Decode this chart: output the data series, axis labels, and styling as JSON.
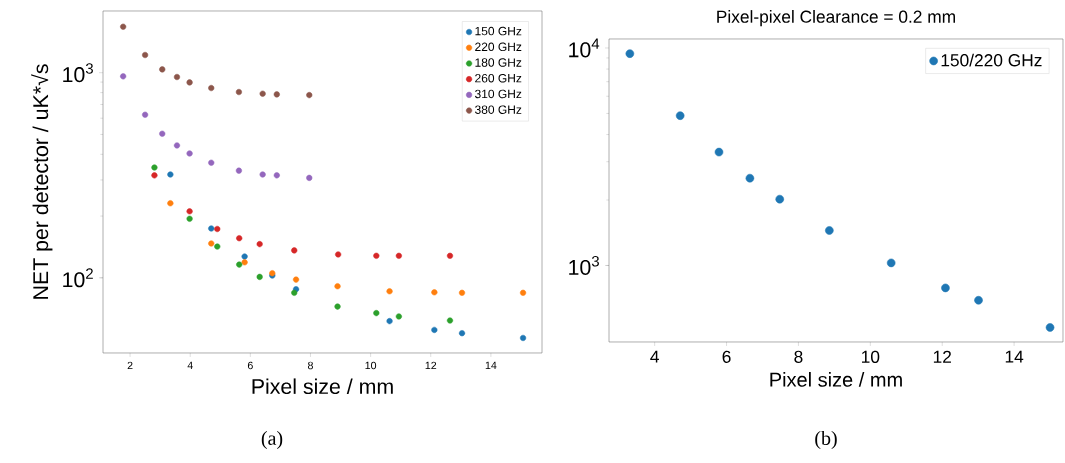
{
  "chart_data": [
    {
      "type": "scatter",
      "xlabel": "Pixel size / mm",
      "ylabel": "NET per detector / uK*√s",
      "log": "y",
      "marker": "circle",
      "legend": "top right",
      "xlim": [
        1.1,
        15.7
      ],
      "ylim": [
        43,
        2000
      ],
      "xticks": [
        2,
        4,
        6,
        8,
        10,
        12,
        14
      ],
      "yticks": [
        {
          "value": 100,
          "label": "10$^{2}$"
        },
        {
          "value": 1000,
          "label": "10$^{3}$"
        }
      ],
      "annotations": [
        "(a)"
      ],
      "series": [
        {
          "name": "150 GHz",
          "color": "#1f77b4",
          "x": [
            3.34,
            4.7,
            5.81,
            6.73,
            7.52,
            10.63,
            12.12,
            13.04,
            15.07
          ],
          "values": [
            319,
            174,
            127,
            102.6,
            88,
            61.5,
            55.7,
            53.7,
            50.9
          ]
        },
        {
          "name": "220 GHz",
          "color": "#ff7f0e",
          "x": [
            3.34,
            4.7,
            5.81,
            6.73,
            7.52,
            8.9,
            10.63,
            12.12,
            13.04,
            15.07
          ],
          "values": [
            231,
            147,
            119,
            105.3,
            98,
            91,
            86,
            85,
            84.5,
            84.5
          ]
        },
        {
          "name": "180 GHz",
          "color": "#2ca02c",
          "x": [
            2.81,
            3.98,
            4.9,
            5.63,
            6.31,
            7.46,
            8.9,
            10.19,
            10.94,
            12.64
          ],
          "values": [
            345,
            194,
            142,
            116,
            101,
            84.5,
            72.4,
            67.3,
            64.8,
            61.9
          ]
        },
        {
          "name": "260 GHz",
          "color": "#d62728",
          "x": [
            2.81,
            3.98,
            4.9,
            5.63,
            6.31,
            7.46,
            8.92,
            10.19,
            10.94,
            12.64
          ],
          "values": [
            316,
            211,
            173,
            156,
            146,
            136,
            130,
            128,
            128,
            128
          ]
        },
        {
          "name": "310 GHz",
          "color": "#9467bd",
          "x": [
            1.77,
            2.5,
            3.07,
            3.56,
            3.98,
            4.7,
            5.62,
            6.41,
            6.88,
            7.96
          ],
          "values": [
            960,
            624,
            504,
            442,
            404,
            364,
            333,
            319,
            316,
            307
          ]
        },
        {
          "name": "380 GHz",
          "color": "#8c564b",
          "x": [
            1.77,
            2.5,
            3.07,
            3.56,
            3.98,
            4.7,
            5.62,
            6.41,
            6.88,
            7.96
          ],
          "values": [
            1676,
            1220,
            1038,
            953,
            897,
            842,
            805,
            790,
            784,
            778
          ]
        }
      ]
    },
    {
      "type": "scatter",
      "title": "Pixel-pixel Clearance = 0.2 mm",
      "xlabel": "Pixel size / mm",
      "log": "y",
      "marker": "circle",
      "legend": "top right",
      "xlim": [
        2.73,
        15.36
      ],
      "ylim": [
        445,
        11000
      ],
      "xticks": [
        4,
        6,
        8,
        10,
        12,
        14
      ],
      "yticks": [
        {
          "value": 1000,
          "label": "10$^{3}$"
        },
        {
          "value": 10000,
          "label": "10$^{4}$"
        }
      ],
      "annotations": [
        "(b)"
      ],
      "series": [
        {
          "name": "150/220 GHz",
          "color": "#1f77b4",
          "x": [
            3.31,
            4.71,
            5.79,
            6.65,
            7.48,
            8.86,
            10.58,
            12.09,
            13.01,
            15.0
          ],
          "values": [
            9420,
            4885,
            3322,
            2520,
            2018,
            1449,
            1028,
            789,
            692,
            519
          ]
        }
      ]
    }
  ]
}
